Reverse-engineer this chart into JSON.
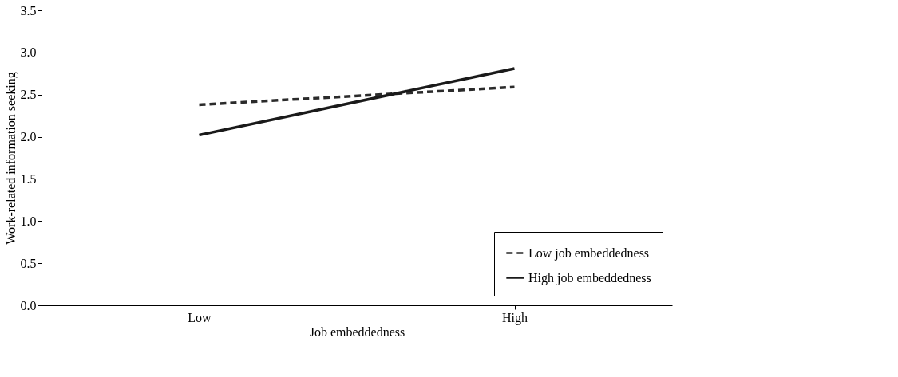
{
  "chart_data": {
    "type": "line",
    "xlabel": "Job embeddedness",
    "ylabel": "Work-related information seeking",
    "categories": [
      "Low",
      "High"
    ],
    "series": [
      {
        "name": "Low job embeddedness",
        "color": "#2b2b2b",
        "line_style": "dashed",
        "values": [
          2.38,
          2.59
        ]
      },
      {
        "name": "High job embeddedness",
        "color": "#1a1a1a",
        "line_style": "solid",
        "values": [
          2.02,
          2.81
        ]
      }
    ],
    "ylim": [
      0,
      3.5
    ],
    "yticks": [
      {
        "value": 0,
        "label": "0.0"
      },
      {
        "value": 0.5,
        "label": "0.5"
      },
      {
        "value": 1,
        "label": "1.0"
      },
      {
        "value": 1.5,
        "label": "1.5"
      },
      {
        "value": 2,
        "label": "2.0"
      },
      {
        "value": 2.5,
        "label": "2.5"
      },
      {
        "value": 3,
        "label": "3.0"
      },
      {
        "value": 3.5,
        "label": "3.5"
      }
    ],
    "grid": false,
    "legend": "bottom right",
    "marker": "none"
  }
}
